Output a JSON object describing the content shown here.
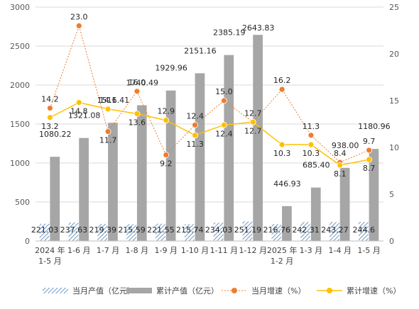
{
  "chart_data": {
    "type": "bar",
    "categories": [
      [
        "2024 年",
        "1-5 月"
      ],
      [
        "1-6 月"
      ],
      [
        "1-7 月"
      ],
      [
        "1-8 月"
      ],
      [
        "1-9 月"
      ],
      [
        "1-10 月"
      ],
      [
        "1-11 月"
      ],
      [
        "1-12 月"
      ],
      [
        "2025 年",
        "1-2 月"
      ],
      [
        "1-3 月"
      ],
      [
        "1-4 月"
      ],
      [
        "1-5 月"
      ]
    ],
    "series": [
      {
        "name": "当月产值（亿元）",
        "kind": "bar",
        "axis": "left",
        "color": "#4a7fb5",
        "values": [
          221.03,
          237.63,
          219.39,
          215.59,
          221.55,
          215.74,
          234.03,
          251.19,
          216.76,
          242.31,
          243.27,
          244.6
        ],
        "labels": [
          "221.03",
          "237.63",
          "219.39",
          "215.59",
          "221.55",
          "215.74",
          "234.03",
          "251.19",
          "216.76",
          "242.31",
          "243.27",
          "244.6"
        ]
      },
      {
        "name": "累计产值（亿元）",
        "kind": "bar",
        "axis": "left",
        "color": "#a6a6a6",
        "values": [
          1080.22,
          1321.08,
          1516.41,
          1740.49,
          1929.96,
          2151.16,
          2385.19,
          2643.83,
          446.93,
          685.4,
          938.0,
          1180.96
        ],
        "labels": [
          "1080.22",
          "1321.08",
          "1516.41",
          "1740.49",
          "1929.96",
          "2151.16",
          "2385.19",
          "2643.83",
          "446.93",
          "685.40",
          "938.00",
          "1180.96"
        ]
      },
      {
        "name": "当月增速（%）",
        "kind": "line",
        "axis": "right",
        "color": "#ed7d31",
        "line_style": "dotted",
        "values": [
          14.2,
          23.0,
          11.7,
          16.0,
          9.2,
          12.4,
          15.0,
          12.7,
          16.2,
          11.3,
          8.4,
          9.7
        ],
        "labels": [
          "14.2",
          "23.0",
          "11.7",
          "16.0",
          "9.2",
          "12.4",
          "15.0",
          "12.7",
          "16.2",
          "11.3",
          "8.4",
          "9.7"
        ]
      },
      {
        "name": "累计增速（%）",
        "kind": "line",
        "axis": "right",
        "color": "#ffc000",
        "line_style": "solid",
        "values": [
          13.2,
          14.8,
          14.1,
          13.6,
          12.9,
          11.3,
          12.4,
          12.7,
          10.3,
          10.3,
          8.1,
          8.7
        ],
        "labels": [
          "13.2",
          "14.8",
          "14.1",
          "13.6",
          "12.9",
          "11.3",
          "12.4",
          "12.7",
          "10.3",
          "10.3",
          "8.1",
          "8.7"
        ]
      }
    ],
    "y_left": {
      "min": 0,
      "max": 3000,
      "ticks": [
        0,
        500,
        1000,
        1500,
        2000,
        2500,
        3000
      ]
    },
    "y_right": {
      "min": 0,
      "max": 25,
      "ticks": [
        0,
        5,
        10,
        15,
        20,
        25
      ]
    },
    "grid": true,
    "legend_position": "bottom",
    "title": "",
    "xlabel": "",
    "ylabel": ""
  }
}
